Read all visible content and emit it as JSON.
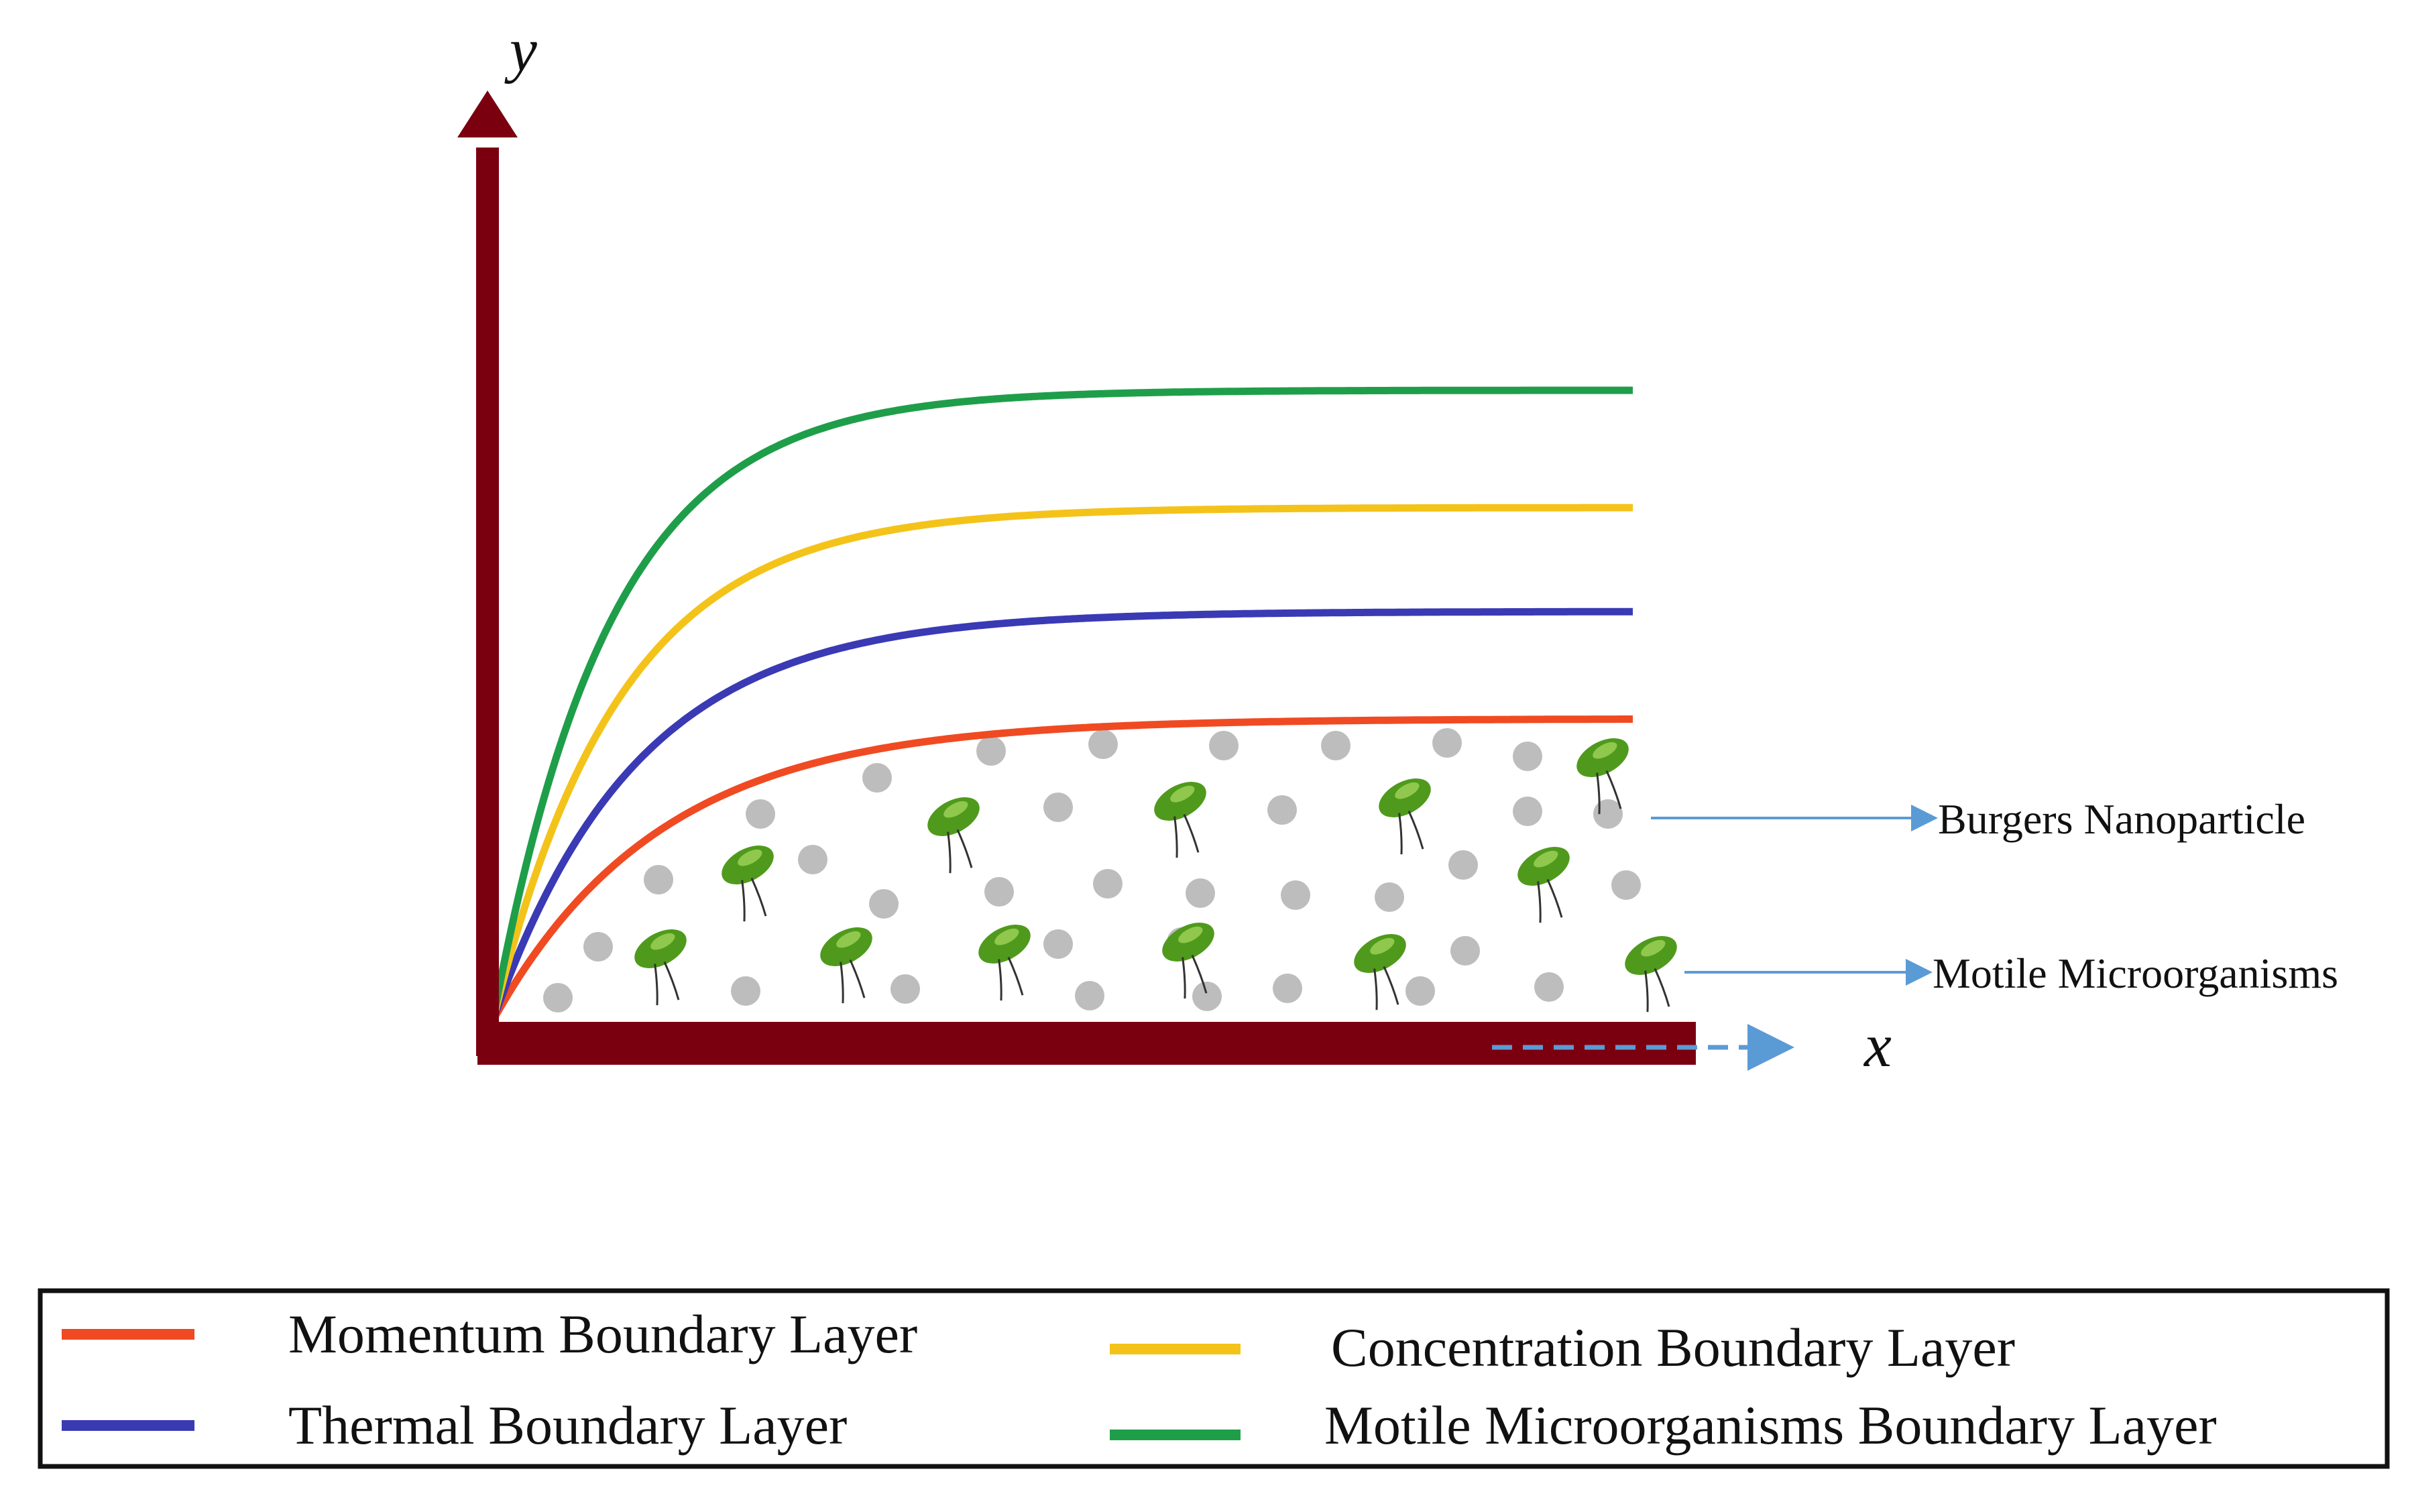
{
  "diagram": {
    "axes": {
      "x_label": "x",
      "y_label": "y"
    },
    "callouts": [
      {
        "label": "Burgers Nanoparticle",
        "points_to": "grey-particles"
      },
      {
        "label": "Motile Microorganisms",
        "points_to": "green-microorganisms"
      }
    ],
    "layers": [
      {
        "key": "momentum",
        "label": "Momentum Boundary Layer",
        "color": "#f04a23"
      },
      {
        "key": "thermal",
        "label": "Thermal Boundary Layer",
        "color": "#3a3ab5"
      },
      {
        "key": "concentration",
        "label": "Concentration Boundary Layer",
        "color": "#f4c31a"
      },
      {
        "key": "microorganisms",
        "label": "Motile Microorganisms Boundary Layer",
        "color": "#1f9e4a"
      }
    ],
    "colors": {
      "axis": "#7a0010",
      "arrow": "#5b9bd5",
      "particle": "#bdbdbd",
      "microorganism_body": "#4f9a1c",
      "microorganism_highlight": "#9fd35a"
    }
  }
}
